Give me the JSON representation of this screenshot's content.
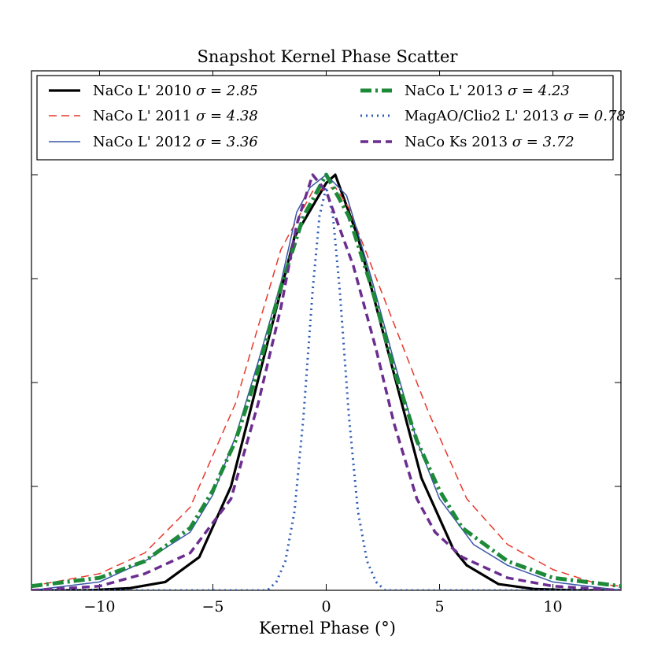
{
  "chart_data": {
    "type": "line",
    "title": "Snapshot Kernel Phase Scatter",
    "xlabel": "Kernel Phase (°)",
    "ylabel": "",
    "xlim": [
      -13,
      13
    ],
    "ylim": [
      0,
      1.25
    ],
    "xticks": [
      -10,
      -5,
      0,
      5,
      10
    ],
    "xtick_labels": [
      "−10",
      "−5",
      "0",
      "5",
      "10"
    ],
    "legend_position": "top",
    "series": [
      {
        "name": "NaCo L' 2010",
        "sigma_label": "σ = 2.85",
        "color": "#000000",
        "style": "solid-thick",
        "x": [
          -13,
          -10.5,
          -8.7,
          -7.1,
          -5.6,
          -4.2,
          -2.8,
          -1.4,
          0,
          0.4,
          1.4,
          2.8,
          4.2,
          5.6,
          6.2,
          7.6,
          9.2,
          11,
          13
        ],
        "y": [
          0.0,
          0.0,
          0.005,
          0.02,
          0.08,
          0.25,
          0.55,
          0.85,
          0.98,
          1.0,
          0.85,
          0.56,
          0.27,
          0.1,
          0.06,
          0.015,
          0.003,
          0.0,
          0.0
        ]
      },
      {
        "name": "NaCo L' 2011",
        "sigma_label": "σ = 4.38",
        "color": "#e8372b",
        "style": "dashed",
        "x": [
          -13,
          -10,
          -8,
          -6,
          -4,
          -2,
          -0.6,
          0.4,
          1.0,
          2.0,
          4.5,
          6.2,
          8,
          10,
          12,
          13
        ],
        "y": [
          0.01,
          0.04,
          0.09,
          0.2,
          0.45,
          0.82,
          0.96,
          0.97,
          0.92,
          0.78,
          0.43,
          0.22,
          0.11,
          0.05,
          0.015,
          0.01
        ]
      },
      {
        "name": "NaCo L' 2012",
        "sigma_label": "σ = 3.36",
        "color": "#3a56a8",
        "style": "solid-thin",
        "x": [
          -13,
          -10,
          -8,
          -6,
          -5,
          -4,
          -3,
          -2,
          -1.3,
          -0.7,
          0,
          0.9,
          2,
          3,
          4,
          5,
          6.5,
          8,
          10,
          13
        ],
        "y": [
          0.0,
          0.02,
          0.07,
          0.14,
          0.23,
          0.37,
          0.55,
          0.74,
          0.91,
          0.97,
          1.0,
          0.95,
          0.75,
          0.55,
          0.36,
          0.22,
          0.11,
          0.06,
          0.02,
          0.0
        ]
      },
      {
        "name": "NaCo L' 2013",
        "sigma_label": "σ = 4.23",
        "color": "#1d8a3a",
        "style": "dashdot-thick",
        "x": [
          -13,
          -10,
          -8,
          -6,
          -5,
          -4,
          -3,
          -2,
          -1,
          0,
          1,
          2,
          3,
          4,
          5,
          6,
          8,
          10,
          13
        ],
        "y": [
          0.01,
          0.03,
          0.07,
          0.15,
          0.24,
          0.36,
          0.53,
          0.73,
          0.9,
          1.0,
          0.9,
          0.73,
          0.53,
          0.36,
          0.24,
          0.15,
          0.07,
          0.03,
          0.01
        ]
      },
      {
        "name": "MagAO/Clio2 L' 2013",
        "sigma_label": "σ = 0.78",
        "color": "#2f5cb5",
        "style": "dotted",
        "x": [
          -13,
          -2.6,
          -2.2,
          -1.8,
          -1.4,
          -1.0,
          -0.6,
          -0.3,
          0,
          0.3,
          0.6,
          1.0,
          1.4,
          1.8,
          2.2,
          2.6,
          13
        ],
        "y": [
          0.0,
          0.0,
          0.02,
          0.07,
          0.19,
          0.42,
          0.72,
          0.9,
          0.97,
          0.9,
          0.72,
          0.42,
          0.19,
          0.07,
          0.02,
          0.0,
          0.0
        ]
      },
      {
        "name": "NaCo Ks 2013",
        "sigma_label": "σ = 3.72",
        "color": "#6b2d8f",
        "style": "dashed-thick",
        "x": [
          -13,
          -10,
          -8,
          -6,
          -4.2,
          -3,
          -2,
          -1.3,
          -0.6,
          0,
          0.4,
          1.2,
          2.2,
          3,
          4,
          4.8,
          6,
          8,
          10,
          13
        ],
        "y": [
          0.0,
          0.01,
          0.04,
          0.09,
          0.22,
          0.45,
          0.68,
          0.88,
          1.0,
          0.96,
          0.9,
          0.78,
          0.58,
          0.4,
          0.22,
          0.14,
          0.08,
          0.03,
          0.01,
          0.0
        ]
      }
    ]
  }
}
